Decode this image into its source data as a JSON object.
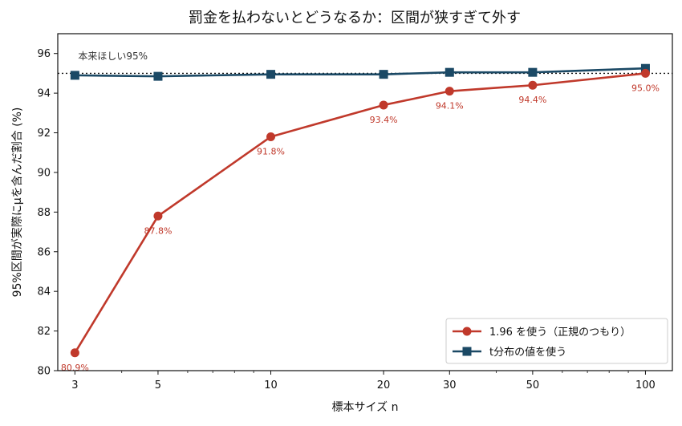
{
  "chart_data": {
    "type": "line",
    "title": "罰金を払わないとどうなるか：区間が狭すぎて外す",
    "xlabel": "標本サイズ n",
    "ylabel": "95%区間が実際にμを含んだ割合 (%)",
    "x_scale": "log",
    "x": [
      3,
      5,
      10,
      20,
      30,
      50,
      100
    ],
    "x_ticks": [
      "3",
      "5",
      "10",
      "20",
      "30",
      "50",
      "100"
    ],
    "ylim": [
      80,
      97
    ],
    "y_ticks": [
      "80",
      "82",
      "84",
      "86",
      "88",
      "90",
      "92",
      "94",
      "96"
    ],
    "grid": false,
    "legend_position": "bottom-right",
    "series": [
      {
        "name": "1.96 を使う（正規のつもり）",
        "values": [
          80.9,
          87.8,
          91.8,
          93.4,
          94.1,
          94.4,
          95.0
        ],
        "labels": [
          "80.9%",
          "87.8%",
          "91.8%",
          "93.4%",
          "94.1%",
          "94.4%",
          "95.0%"
        ],
        "color": "#c0392b",
        "marker": "circle"
      },
      {
        "name": "t分布の値を使う",
        "values": [
          94.9,
          94.85,
          94.95,
          94.95,
          95.05,
          95.05,
          95.25
        ],
        "color": "#1b4965",
        "marker": "square"
      }
    ],
    "reference_line": {
      "value": 95,
      "label": "本来ほしい95%",
      "style": "dotted",
      "color": "#111111"
    }
  }
}
